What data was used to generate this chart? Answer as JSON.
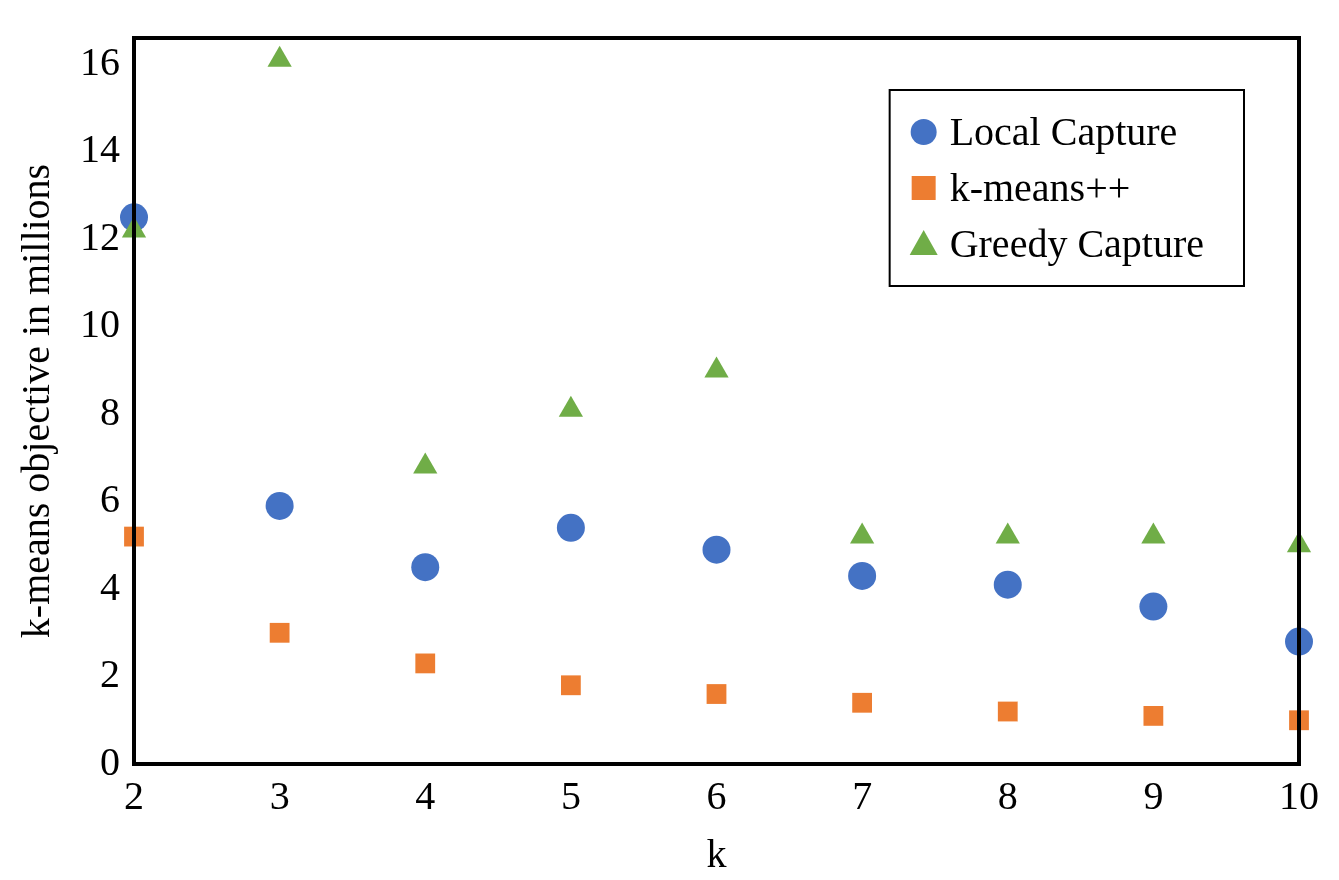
{
  "chart_data": {
    "type": "scatter",
    "xlabel": "k",
    "ylabel": "k-means objective in millions",
    "xlim": [
      2,
      10
    ],
    "xticks": [
      2,
      3,
      4,
      5,
      6,
      7,
      8,
      9,
      10
    ],
    "ylim": [
      0,
      16.6
    ],
    "yticks": [
      0,
      2,
      4,
      6,
      8,
      10,
      12,
      14,
      16
    ],
    "grid": false,
    "legend": "top right",
    "x": [
      2,
      3,
      4,
      5,
      6,
      7,
      8,
      9,
      10
    ],
    "series": [
      {
        "name": "Local Capture",
        "color": "#4472c4",
        "marker": "circle",
        "values": [
          12.5,
          5.9,
          4.5,
          5.4,
          4.9,
          4.3,
          4.1,
          3.6,
          2.8
        ]
      },
      {
        "name": "k-means++",
        "color": "#ed7d31",
        "marker": "square",
        "values": [
          5.2,
          3.0,
          2.3,
          1.8,
          1.6,
          1.4,
          1.2,
          1.1,
          1.0
        ]
      },
      {
        "name": "Greedy Capture",
        "color": "#70ad47",
        "marker": "triangle",
        "values": [
          12.2,
          16.1,
          6.8,
          8.1,
          9.0,
          5.2,
          5.2,
          5.2,
          5.0
        ]
      }
    ]
  }
}
